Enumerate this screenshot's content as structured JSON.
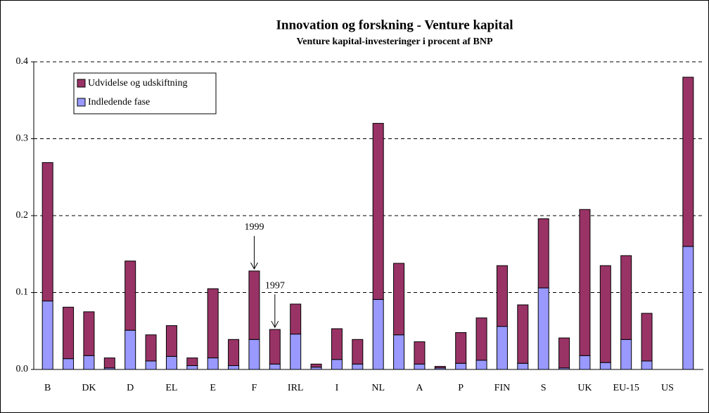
{
  "chart_data": {
    "type": "stacked_bar",
    "title": "Innovation og forskning - Venture kapital",
    "subtitle": "Venture kapital-investeringer i procent af BNP",
    "categories": [
      "B",
      null,
      "DK",
      null,
      "D",
      null,
      "EL",
      null,
      "E",
      null,
      "F",
      null,
      "IRL",
      null,
      "I",
      null,
      "NL",
      null,
      "A",
      null,
      "P",
      null,
      "FIN",
      null,
      "S",
      null,
      "UK",
      null,
      "EU-15",
      null,
      "US",
      null
    ],
    "series": [
      {
        "name": "Indledende fase",
        "color": "#9999ff",
        "values": [
          0.089,
          0.014,
          0.018,
          0.002,
          0.051,
          0.011,
          0.017,
          0.005,
          0.015,
          0.005,
          0.039,
          0.007,
          0.046,
          0.003,
          0.013,
          0.007,
          0.091,
          0.045,
          0.007,
          0.002,
          0.008,
          0.012,
          0.056,
          0.008,
          0.106,
          0.002,
          0.018,
          0.009,
          0.039,
          0.011,
          null,
          0.16
        ]
      },
      {
        "name": "Udvidelse og udskiftning",
        "color": "#993366",
        "values": [
          0.18,
          0.067,
          0.057,
          0.013,
          0.09,
          0.034,
          0.04,
          0.01,
          0.09,
          0.034,
          0.089,
          0.045,
          0.039,
          0.004,
          0.04,
          0.032,
          0.229,
          0.093,
          0.029,
          0.002,
          0.04,
          0.055,
          0.079,
          0.076,
          0.09,
          0.039,
          0.19,
          0.126,
          0.109,
          0.062,
          null,
          0.22
        ]
      }
    ],
    "annotations": [
      {
        "text": "1999",
        "index": 10
      },
      {
        "text": "1997",
        "index": 11
      }
    ],
    "ylim": [
      0,
      0.4
    ],
    "yticks": [
      {
        "value": 0,
        "label": "0.0"
      },
      0.1,
      0.2,
      0.3,
      0.4
    ],
    "grid": true,
    "legend": "upper left"
  }
}
